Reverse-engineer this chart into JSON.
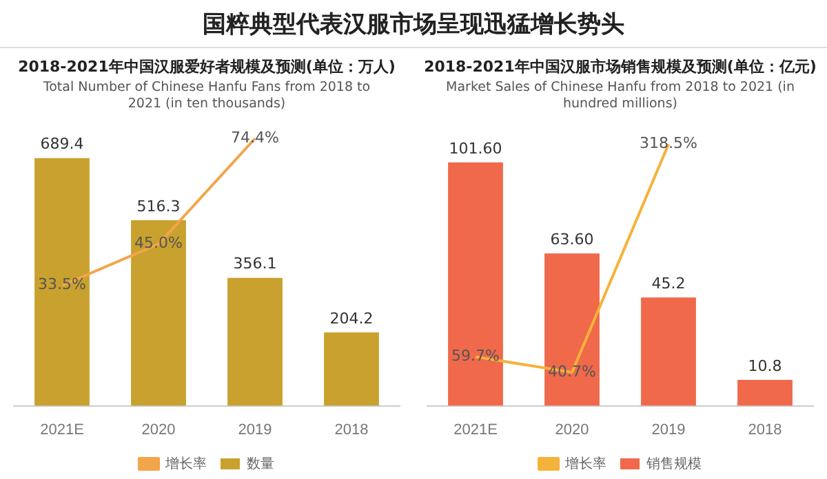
{
  "chart_data": [
    {
      "type": "other",
      "title": "国粹典型代表汉服市场呈现迅猛增长势头"
    },
    {
      "type": "bar",
      "title": "2018-2021年中国汉服爱好者规模及预测(单位：万人)",
      "subtitle": "Total Number of Chinese Hanfu Fans from 2018 to 2021 (in ten thousands)",
      "categories": [
        "2021E",
        "2020",
        "2019",
        "2018"
      ],
      "legend": "bottom",
      "series": [
        {
          "name": "数量",
          "type": "bar",
          "color": "#c9a12e",
          "values": [
            689.4,
            516.3,
            356.1,
            204.2
          ],
          "value_labels": [
            "689.4",
            "516.3",
            "356.1",
            "204.2"
          ]
        },
        {
          "name": "增长率",
          "type": "line",
          "axis": "y2",
          "color": "#f2a54a",
          "values": [
            33.5,
            45.0,
            74.4,
            null
          ],
          "value_labels": [
            "33.5%",
            "45.0%",
            "74.4%",
            null
          ]
        }
      ]
    },
    {
      "type": "bar",
      "title": "2018-2021年中国汉服市场销售规模及预测(单位：亿元)",
      "subtitle": "Market Sales of Chinese Hanfu from 2018 to 2021 (in hundred millions)",
      "categories": [
        "2021E",
        "2020",
        "2019",
        "2018"
      ],
      "legend": "bottom",
      "series": [
        {
          "name": "销售规模",
          "type": "bar",
          "color": "#f0694a",
          "values": [
            101.6,
            63.6,
            45.2,
            10.8
          ],
          "value_labels": [
            "101.60",
            "63.60",
            "45.2",
            "10.8"
          ]
        },
        {
          "name": "增长率",
          "type": "line",
          "axis": "y2",
          "color": "#f5b23a",
          "values": [
            59.7,
            40.7,
            318.5,
            null
          ],
          "value_labels": [
            "59.7%",
            "40.7%",
            "318.5%",
            null
          ]
        }
      ]
    }
  ]
}
